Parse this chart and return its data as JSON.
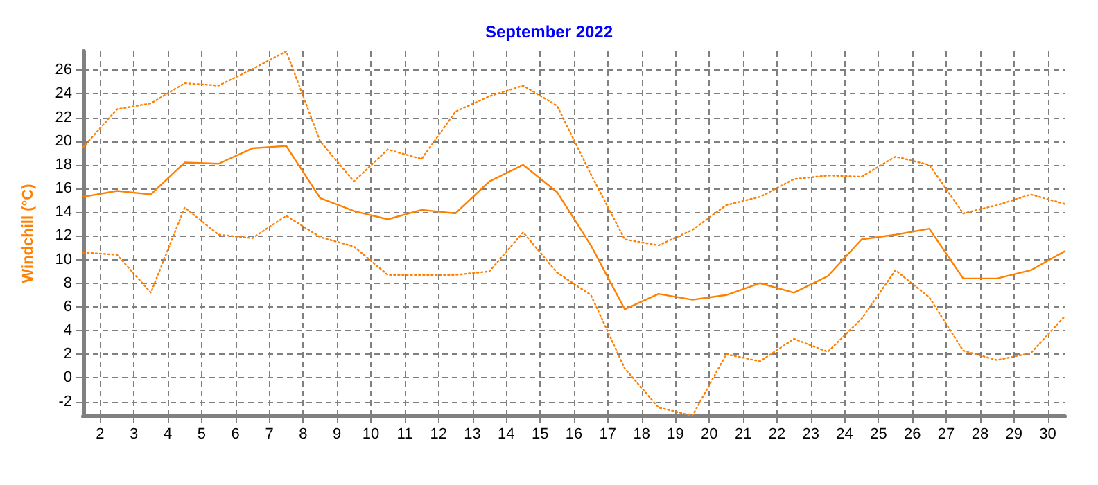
{
  "chart_data": {
    "type": "line",
    "title": "September 2022",
    "ylabel": "Windchill (°C)",
    "x": [
      1.5,
      2.5,
      3.5,
      4.5,
      5.5,
      6.5,
      7.5,
      8.5,
      9.5,
      10.5,
      11.5,
      12.5,
      13.5,
      14.5,
      15.5,
      16.5,
      17.5,
      18.5,
      19.5,
      20.5,
      21.5,
      22.5,
      23.5,
      24.5,
      25.5,
      26.5,
      27.5,
      28.5,
      29.5,
      30.5
    ],
    "series": [
      {
        "color": "#ff8000",
        "line_style": "dotted",
        "values": [
          19.5,
          22.7,
          23.2,
          24.9,
          24.7,
          26.1,
          27.6,
          20.0,
          16.6,
          19.3,
          18.5,
          22.5,
          23.8,
          24.7,
          23.0,
          17.2,
          11.7,
          11.2,
          12.5,
          14.6,
          15.3,
          16.8,
          17.1,
          17.0,
          18.7,
          18.0,
          13.9,
          14.6,
          15.5,
          14.7
        ]
      },
      {
        "color": "#ff8000",
        "line_style": "solid",
        "values": [
          15.3,
          15.8,
          15.5,
          18.2,
          18.1,
          19.4,
          19.6,
          15.2,
          14.1,
          13.4,
          14.2,
          13.9,
          16.6,
          18.0,
          15.7,
          11.2,
          5.8,
          7.1,
          6.6,
          7.0,
          8.0,
          7.2,
          8.6,
          11.7,
          12.1,
          12.6,
          8.4,
          8.4,
          9.1,
          10.7
        ]
      },
      {
        "color": "#ff8000",
        "line_style": "dotted",
        "values": [
          10.6,
          10.4,
          7.2,
          14.4,
          12.1,
          11.8,
          13.7,
          11.9,
          11.1,
          8.7,
          8.7,
          8.7,
          9.0,
          12.3,
          8.9,
          7.0,
          0.8,
          -2.5,
          -3.2,
          2.0,
          1.4,
          3.3,
          2.2,
          5.0,
          9.1,
          6.8,
          2.3,
          1.5,
          2.1,
          5.2
        ]
      }
    ],
    "xlim": [
      1.5,
      30.5
    ],
    "xticks": [
      2,
      3,
      4,
      5,
      6,
      7,
      8,
      9,
      10,
      11,
      12,
      13,
      14,
      15,
      16,
      17,
      18,
      19,
      20,
      21,
      22,
      23,
      24,
      25,
      26,
      27,
      28,
      29,
      30
    ],
    "ylim": [
      -3.2,
      27.6
    ],
    "yticks": [
      -2,
      0,
      2,
      4,
      6,
      8,
      10,
      12,
      14,
      16,
      18,
      20,
      22,
      24,
      26
    ],
    "grid": true,
    "marker": "none"
  }
}
